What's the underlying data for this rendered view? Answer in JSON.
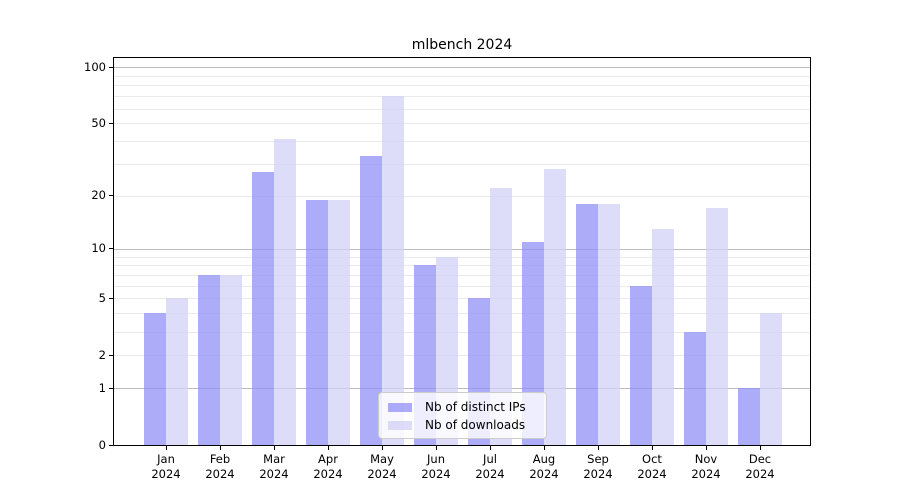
{
  "chart_data": {
    "type": "bar",
    "title": "mlbench 2024",
    "categories": [
      "Jan",
      "Feb",
      "Mar",
      "Apr",
      "May",
      "Jun",
      "Jul",
      "Aug",
      "Sep",
      "Oct",
      "Nov",
      "Dec"
    ],
    "x_year": "2024",
    "series": [
      {
        "name": "Nb of distinct IPs",
        "color": "rgba(144,144,247,0.75)",
        "values": [
          4,
          7,
          27,
          19,
          33,
          8,
          5,
          11,
          18,
          6,
          3,
          1
        ]
      },
      {
        "name": "Nb of downloads",
        "color": "rgba(209,209,247,0.75)",
        "values": [
          5,
          7,
          41,
          19,
          70,
          9,
          22,
          28,
          18,
          13,
          17,
          4
        ]
      }
    ],
    "y_ticks": [
      0,
      1,
      2,
      5,
      10,
      20,
      50,
      100
    ],
    "y_minor_grid": [
      2,
      3,
      4,
      5,
      6,
      7,
      8,
      9,
      20,
      30,
      40,
      50,
      60,
      70,
      80,
      90
    ],
    "y_major_grid": [
      1,
      10,
      100
    ],
    "y_scale": "log10(1+x)",
    "ylim": [
      0,
      112
    ],
    "grid": true,
    "legend_position": "lower center"
  },
  "colors": {
    "grid_minor": "#eaeaea",
    "grid_major": "#bcbcbc",
    "axis": "#000000",
    "legend_border": "#cccccc",
    "legend_bg": "rgba(255,255,255,0.8)",
    "text": "#000000"
  }
}
